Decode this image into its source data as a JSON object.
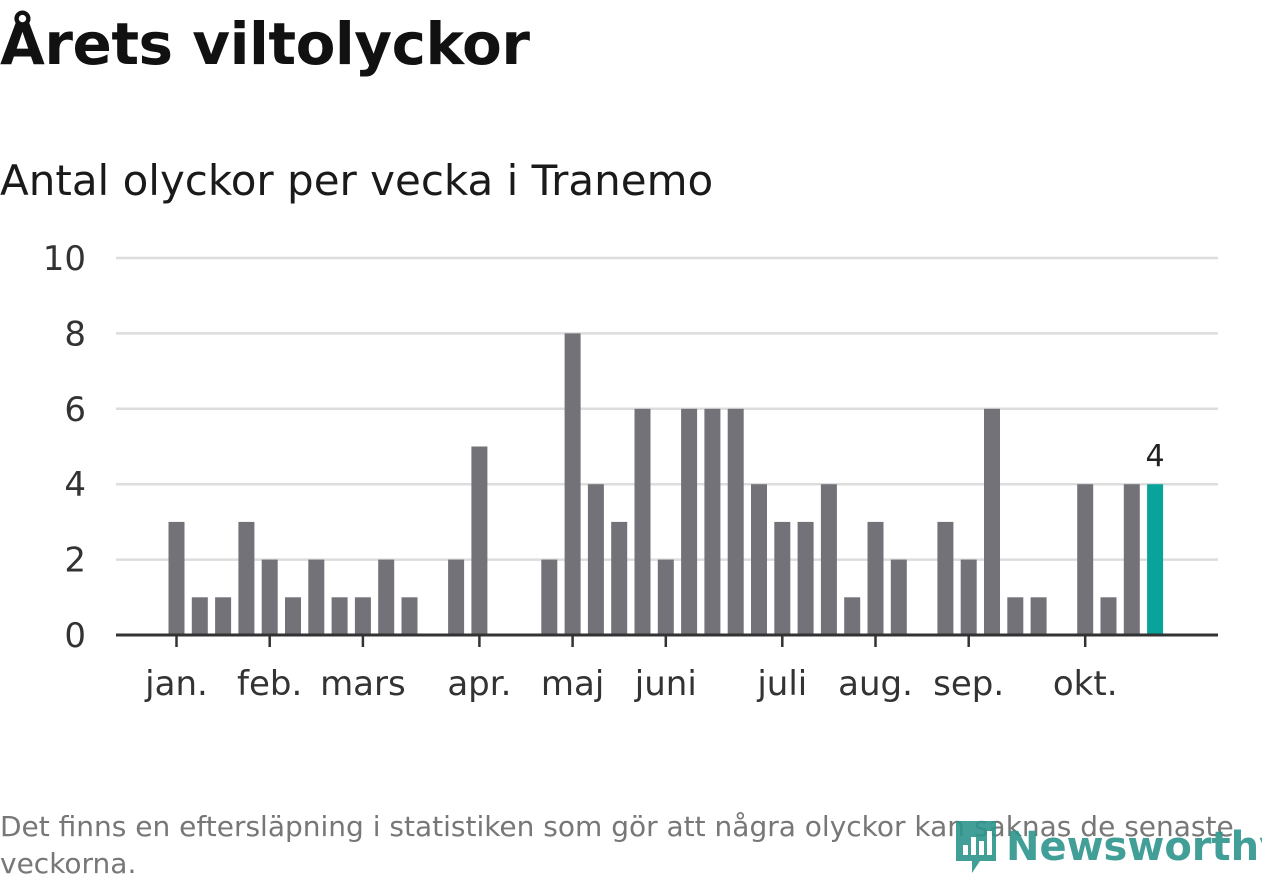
{
  "title": "Årets viltolyckor",
  "subtitle": "Antal olyckor per vecka i Tranemo",
  "footnote": "Det finns en eftersläpning i statistiken som gör att några olyckor kan saknas de senaste veckorna.",
  "brand": {
    "name": "Newsworthy",
    "icon": "newsworthy-logo-icon",
    "color": "#2e958d"
  },
  "colors": {
    "bar": "#737278",
    "highlight": "#0aa399",
    "grid": "#dddddd",
    "axis": "#333333"
  },
  "chart_data": {
    "type": "bar",
    "title": "Antal olyckor per vecka i Tranemo",
    "xlabel": "",
    "ylabel": "",
    "x": [
      1,
      2,
      3,
      4,
      5,
      6,
      7,
      8,
      9,
      10,
      11,
      12,
      13,
      14,
      15,
      16,
      17,
      18,
      19,
      20,
      21,
      22,
      23,
      24,
      25,
      26,
      27,
      28,
      29,
      30,
      31,
      32,
      33,
      34,
      35,
      36,
      37,
      38,
      39,
      40,
      41,
      42,
      43
    ],
    "values": [
      3,
      1,
      1,
      3,
      2,
      1,
      2,
      1,
      1,
      2,
      1,
      0,
      2,
      5,
      0,
      0,
      2,
      8,
      4,
      3,
      6,
      2,
      6,
      6,
      6,
      4,
      3,
      3,
      4,
      1,
      3,
      2,
      0,
      3,
      2,
      6,
      1,
      1,
      0,
      4,
      1,
      4,
      4
    ],
    "ylim": [
      0,
      10
    ],
    "yticks": [
      0,
      2,
      4,
      6,
      8,
      10
    ],
    "month_ticks": [
      {
        "label": "jan.",
        "week": 1
      },
      {
        "label": "feb.",
        "week": 5
      },
      {
        "label": "mars",
        "week": 9
      },
      {
        "label": "apr.",
        "week": 14
      },
      {
        "label": "maj",
        "week": 18
      },
      {
        "label": "juni",
        "week": 22
      },
      {
        "label": "juli",
        "week": 27
      },
      {
        "label": "aug.",
        "week": 31
      },
      {
        "label": "sep.",
        "week": 35
      },
      {
        "label": "okt.",
        "week": 40
      }
    ],
    "highlight_last": true,
    "highlight_label": "4",
    "grid": true
  }
}
